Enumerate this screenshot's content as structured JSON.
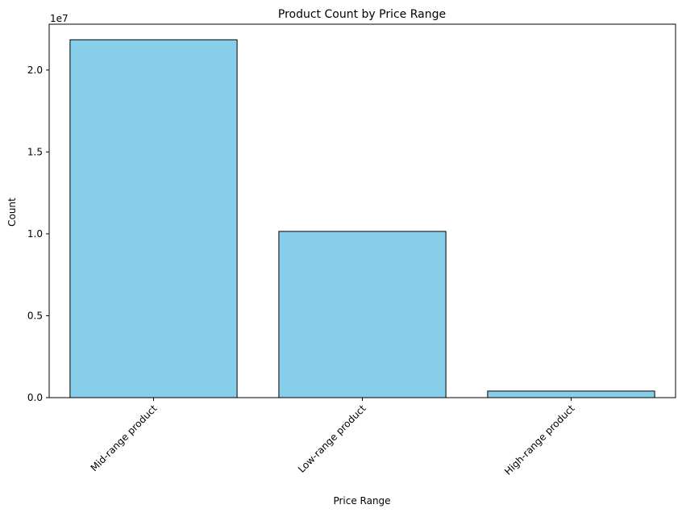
{
  "chart_data": {
    "type": "bar",
    "title": "Product Count by Price Range",
    "xlabel": "Price Range",
    "ylabel": "Count",
    "y_offset_text": "1e7",
    "categories": [
      "Mid-range product",
      "Low-range product",
      "High-range product"
    ],
    "values": [
      21850000,
      10150000,
      400000
    ],
    "ylim": [
      0,
      22800000
    ],
    "yticks": [
      0,
      5000000,
      10000000,
      15000000,
      20000000
    ],
    "ytick_labels": [
      "0.0",
      "0.5",
      "1.0",
      "1.5",
      "2.0"
    ],
    "grid": false,
    "legend": "none",
    "bar_color": "#87ceeb",
    "bar_edge_color": "#000000"
  }
}
